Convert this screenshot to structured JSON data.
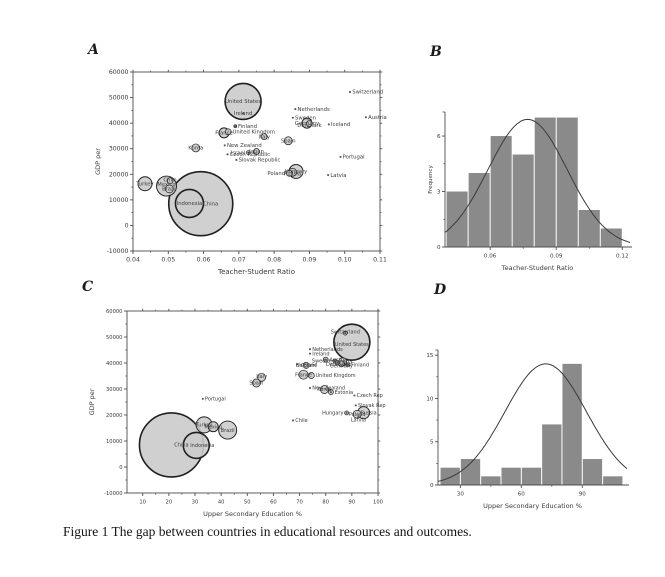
{
  "caption": "Figure 1 The gap between countries in educational resources and outcomes.",
  "colors": {
    "background": "#ffffff",
    "bubble_fill": "#cbcbcb",
    "bubble_stroke": "#1f1f1f",
    "bar_fill": "#8a8a8a",
    "curve": "#3a3a3a",
    "axis": "#4d4d4d",
    "text": "#3a3a3a"
  },
  "chart_data": [
    {
      "id": "A",
      "panel_label": "A",
      "type": "scatter",
      "xlabel": "Teacher-Student Ratio",
      "ylabel": "GDP per",
      "xlim": [
        0.04,
        0.11
      ],
      "ylim": [
        -10000,
        60000
      ],
      "xticks": [
        {
          "v": 0.04,
          "label": "0.04"
        },
        {
          "v": 0.05,
          "label": "0.05"
        },
        {
          "v": 0.06,
          "label": "0.06"
        },
        {
          "v": 0.07,
          "label": "0.07"
        },
        {
          "v": 0.08,
          "label": "0.08"
        },
        {
          "v": 0.09,
          "label": "0.09"
        },
        {
          "v": 0.1,
          "label": "0.10"
        },
        {
          "v": 0.11,
          "label": "0.11"
        }
      ],
      "yticks": [
        {
          "v": 60000,
          "label": "60000"
        },
        {
          "v": 50000,
          "label": "50000"
        },
        {
          "v": 40000,
          "label": "40000"
        },
        {
          "v": 30000,
          "label": "30000"
        },
        {
          "v": 20000,
          "label": "20000"
        },
        {
          "v": 10000,
          "label": "10000"
        },
        {
          "v": 0,
          "label": "0"
        },
        {
          "v": -10000,
          "label": "-10000"
        }
      ],
      "points": [
        {
          "label": "United States",
          "x": 0.0712,
          "y": 48500,
          "r": 18,
          "a": "m"
        },
        {
          "label": "Ireland",
          "x": 0.0712,
          "y": 43800,
          "r": 0,
          "a": "m"
        },
        {
          "label": "Switzerland",
          "x": 0.1015,
          "y": 52200,
          "r": 0
        },
        {
          "label": "Netherlands",
          "x": 0.086,
          "y": 45500,
          "r": 0
        },
        {
          "label": "Sweden",
          "x": 0.0853,
          "y": 42100,
          "r": 0
        },
        {
          "label": "Germany",
          "x": 0.0893,
          "y": 40000,
          "r": 5,
          "a": "m"
        },
        {
          "label": "Denmark",
          "x": 0.09,
          "y": 39800,
          "r": 3,
          "a": "m",
          "ldy": 1.8
        },
        {
          "label": "Iceland",
          "x": 0.0955,
          "y": 39500,
          "r": 0
        },
        {
          "label": "Austria",
          "x": 0.106,
          "y": 42300,
          "r": 0
        },
        {
          "label": "Finland",
          "x": 0.069,
          "y": 38800,
          "r": 1.5
        },
        {
          "label": "France",
          "x": 0.0658,
          "y": 36200,
          "r": 5,
          "a": "m"
        },
        {
          "label": "United Kingdom",
          "x": 0.067,
          "y": 36600,
          "r": 3
        },
        {
          "label": "Italy",
          "x": 0.0772,
          "y": 34700,
          "r": 3,
          "a": "m"
        },
        {
          "label": "Spain",
          "x": 0.084,
          "y": 33100,
          "r": 4,
          "a": "m"
        },
        {
          "label": "Korea",
          "x": 0.0578,
          "y": 30300,
          "r": 4,
          "a": "m"
        },
        {
          "label": "New Zealand",
          "x": 0.066,
          "y": 31300,
          "r": 0
        },
        {
          "label": "Czech Republic",
          "x": 0.0668,
          "y": 27800,
          "r": 0
        },
        {
          "label": "Japan",
          "x": 0.075,
          "y": 28900,
          "r": 3,
          "a": "m"
        },
        {
          "label": "Israel",
          "x": 0.0727,
          "y": 28500,
          "r": 2,
          "a": "e"
        },
        {
          "label": "Slovak Republic",
          "x": 0.0693,
          "y": 25600,
          "r": 0
        },
        {
          "label": "Portugal",
          "x": 0.0988,
          "y": 26800,
          "r": 0
        },
        {
          "label": "Hungary",
          "x": 0.0862,
          "y": 21100,
          "r": 7,
          "a": "m"
        },
        {
          "label": "Poland",
          "x": 0.0843,
          "y": 20400,
          "r": 3,
          "a": "e"
        },
        {
          "label": "Russia",
          "x": 0.0852,
          "y": 20800,
          "r": 4,
          "a": "m",
          "ldy": 1.5
        },
        {
          "label": "Latvia",
          "x": 0.0953,
          "y": 19700,
          "r": 0
        },
        {
          "label": "Turkey",
          "x": 0.0434,
          "y": 16300,
          "r": 7,
          "a": "m"
        },
        {
          "label": "Chile",
          "x": 0.0505,
          "y": 17500,
          "r": 3,
          "a": "m",
          "ldy": -1
        },
        {
          "label": "Mexico",
          "x": 0.0495,
          "y": 15400,
          "r": 10,
          "a": "m",
          "ldy": -1.5
        },
        {
          "label": "Brazil",
          "x": 0.0503,
          "y": 14300,
          "r": 4,
          "a": "m"
        },
        {
          "label": "Indonesia",
          "x": 0.056,
          "y": 8600,
          "r": 14,
          "a": "m"
        },
        {
          "label": "China",
          "x": 0.0592,
          "y": 8500,
          "r": 32,
          "a": "m",
          "ldx": 10
        }
      ]
    },
    {
      "id": "B",
      "panel_label": "B",
      "type": "histogram",
      "xlabel": "Teacher-Student Ratio",
      "ylabel": "Frequency",
      "xlim": [
        0.0395,
        0.1235
      ],
      "ylim": [
        0,
        7.3
      ],
      "xticks": [
        {
          "v": 0.06,
          "label": "0.06"
        },
        {
          "v": 0.09,
          "label": "0.09"
        },
        {
          "v": 0.12,
          "label": "0.12"
        }
      ],
      "yticks": [
        {
          "v": 0,
          "label": "0"
        },
        {
          "v": 3,
          "label": "3"
        },
        {
          "v": 6,
          "label": "6"
        }
      ],
      "bins": {
        "start": 0.04,
        "width": 0.01,
        "values": [
          3,
          4,
          6,
          5,
          7,
          7,
          2,
          1
        ]
      },
      "curve": {
        "mean": 0.077,
        "sd": 0.018,
        "peak": 6.9
      }
    },
    {
      "id": "C",
      "panel_label": "C",
      "type": "scatter",
      "xlabel": "Upper Secondary Education %",
      "ylabel": "GDP per",
      "xlim": [
        4,
        100
      ],
      "ylim": [
        -10000,
        60000
      ],
      "xticks": [
        {
          "v": 10,
          "label": "10"
        },
        {
          "v": 20,
          "label": "20"
        },
        {
          "v": 30,
          "label": "30"
        },
        {
          "v": 40,
          "label": "40"
        },
        {
          "v": 50,
          "label": "50"
        },
        {
          "v": 60,
          "label": "60"
        },
        {
          "v": 70,
          "label": "70"
        },
        {
          "v": 80,
          "label": "80"
        },
        {
          "v": 90,
          "label": "90"
        },
        {
          "v": 100,
          "label": "100"
        }
      ],
      "yticks": [
        {
          "v": 60000,
          "label": "60000"
        },
        {
          "v": 50000,
          "label": "50000"
        },
        {
          "v": 40000,
          "label": "40000"
        },
        {
          "v": 30000,
          "label": "30000"
        },
        {
          "v": 20000,
          "label": "20000"
        },
        {
          "v": 10000,
          "label": "10000"
        },
        {
          "v": 0,
          "label": "0"
        },
        {
          "v": -10000,
          "label": "-10000"
        }
      ],
      "points": [
        {
          "label": "Switzerland",
          "x": 87.5,
          "y": 51500,
          "r": 2,
          "a": "m",
          "ldy": -1.5
        },
        {
          "label": "United States",
          "x": 90,
          "y": 48000,
          "r": 18,
          "a": "m",
          "ldy": 2
        },
        {
          "label": "Netherlands",
          "x": 74,
          "y": 45300,
          "r": 0
        },
        {
          "label": "Ireland",
          "x": 74,
          "y": 43600,
          "r": 0
        },
        {
          "label": "Austria",
          "x": 80,
          "y": 41300,
          "r": 2.5
        },
        {
          "label": "Sweden",
          "x": 83.5,
          "y": 40800,
          "r": 2,
          "a": "e"
        },
        {
          "label": "Canada",
          "x": 86.5,
          "y": 40500,
          "r": 4,
          "a": "m"
        },
        {
          "label": "Denmark",
          "x": 84.5,
          "y": 40100,
          "r": 2,
          "a": "m",
          "ldy": 1.5
        },
        {
          "label": "Germany",
          "x": 86,
          "y": 39700,
          "r": 3,
          "a": "m",
          "ldy": 2
        },
        {
          "label": "Finland",
          "x": 88.5,
          "y": 39300,
          "r": 2
        },
        {
          "label": "Iceland",
          "x": 69,
          "y": 39400,
          "r": 0
        },
        {
          "label": "Belgium",
          "x": 72.5,
          "y": 39100,
          "r": 3,
          "a": "m"
        },
        {
          "label": "France",
          "x": 71.5,
          "y": 35500,
          "r": 4.5,
          "a": "m"
        },
        {
          "label": "United Kingdom",
          "x": 74.5,
          "y": 35200,
          "r": 3
        },
        {
          "label": "Italy",
          "x": 55.5,
          "y": 34500,
          "r": 4,
          "a": "m",
          "ldy": -1
        },
        {
          "label": "Spain",
          "x": 53.5,
          "y": 32300,
          "r": 4,
          "a": "m"
        },
        {
          "label": "New Zealand",
          "x": 74,
          "y": 30400,
          "r": 0
        },
        {
          "label": "Korea",
          "x": 79.5,
          "y": 29800,
          "r": 4,
          "a": "m"
        },
        {
          "label": "Estonia",
          "x": 82,
          "y": 28800,
          "r": 2.5
        },
        {
          "label": "Czech Rep",
          "x": 91,
          "y": 27500,
          "r": 0
        },
        {
          "label": "Slovak Rep",
          "x": 91.5,
          "y": 23700,
          "r": 0
        },
        {
          "label": "Hungary",
          "x": 88,
          "y": 20800,
          "r": 2,
          "a": "e"
        },
        {
          "label": "Poland",
          "x": 92,
          "y": 20300,
          "r": 4,
          "a": "m"
        },
        {
          "label": "Russia",
          "x": 94.5,
          "y": 20900,
          "r": 6,
          "a": "m",
          "ldx": 5
        },
        {
          "label": "Latvia",
          "x": 92.5,
          "y": 19200,
          "r": 0,
          "a": "m",
          "ldy": 2.5
        },
        {
          "label": "Chile",
          "x": 67.5,
          "y": 17900,
          "r": 0
        },
        {
          "label": "Portugal",
          "x": 33,
          "y": 26200,
          "r": 0
        },
        {
          "label": "Turkey",
          "x": 33.5,
          "y": 16200,
          "r": 8,
          "a": "m"
        },
        {
          "label": "Mexico",
          "x": 37,
          "y": 15500,
          "r": 5,
          "a": "m"
        },
        {
          "label": "Brazil",
          "x": 42.5,
          "y": 14200,
          "r": 9,
          "a": "m"
        },
        {
          "label": "Indonesia",
          "x": 30.5,
          "y": 8300,
          "r": 13,
          "a": "m",
          "ldx": 6
        },
        {
          "label": "China",
          "x": 21,
          "y": 8500,
          "r": 32,
          "a": "m",
          "ldx": 10
        }
      ]
    },
    {
      "id": "D",
      "panel_label": "D",
      "type": "histogram",
      "xlabel": "Upper Secondary Education %",
      "ylabel": "",
      "xlim": [
        19,
        112
      ],
      "ylim": [
        0,
        15.6
      ],
      "xticks": [
        {
          "v": 30,
          "label": "30"
        },
        {
          "v": 60,
          "label": "60"
        },
        {
          "v": 90,
          "label": "90"
        }
      ],
      "yticks": [
        {
          "v": 0,
          "label": "0"
        },
        {
          "v": 5,
          "label": "5"
        },
        {
          "v": 10,
          "label": "10"
        },
        {
          "v": 15,
          "label": "15"
        }
      ],
      "bins": {
        "start": 20,
        "width": 10,
        "values": [
          2,
          3,
          1,
          2,
          2,
          7,
          14,
          3,
          1
        ]
      },
      "curve": {
        "mean": 72,
        "sd": 20,
        "peak": 14
      }
    }
  ]
}
